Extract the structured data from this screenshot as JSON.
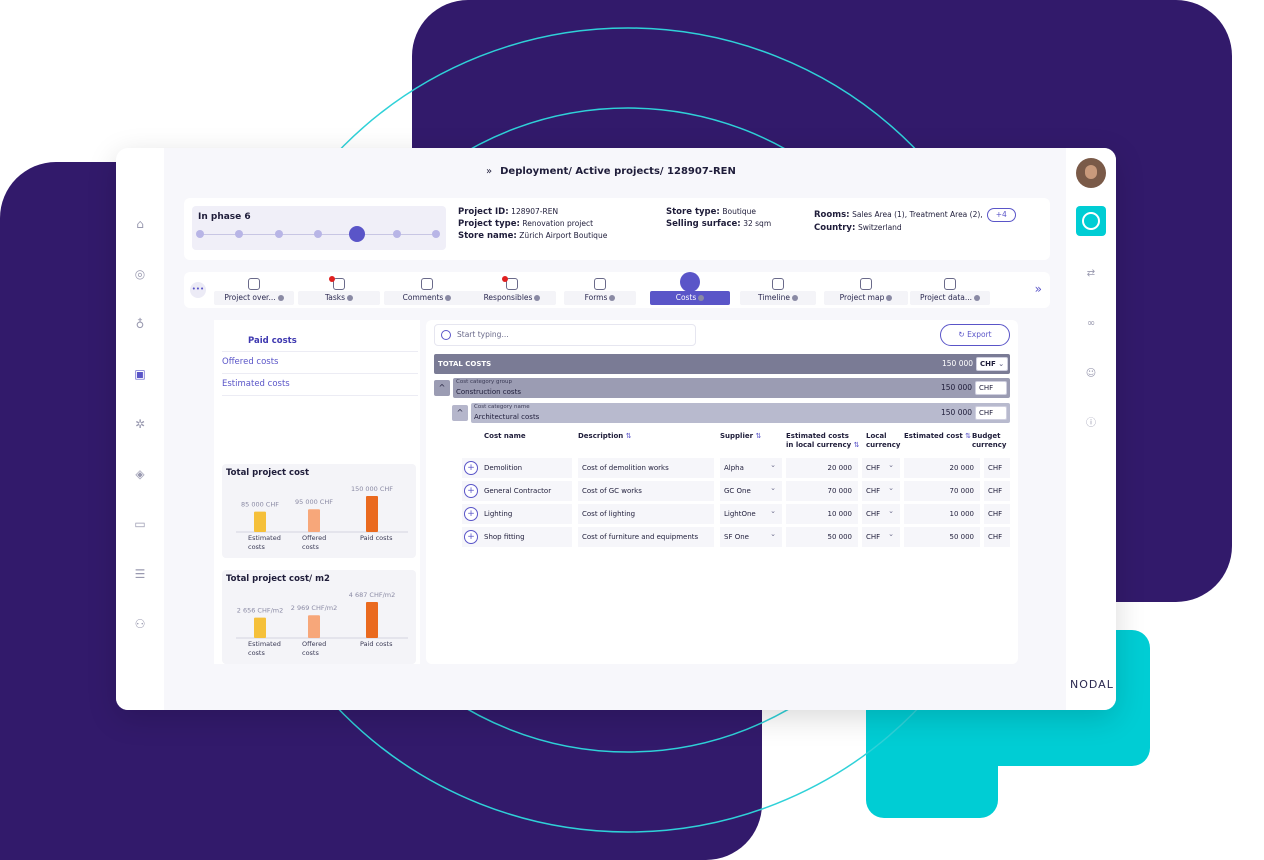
{
  "breadcrumb": "Deployment/ Active projects/ 128907-REN",
  "phase": {
    "title": "In phase 6",
    "current": 5,
    "total": 7
  },
  "project": {
    "id_label": "Project ID:",
    "id_value": "128907-REN",
    "type_label": "Project type:",
    "type_value": "Renovation project",
    "store_label": "Store name:",
    "store_value": "Zürich Airport Boutique",
    "store_type_label": "Store type:",
    "store_type_value": "Boutique",
    "surface_label": "Selling surface:",
    "surface_value": "32 sqm",
    "rooms_label": "Rooms:",
    "rooms_value": "Sales Area (1), Treatment Area (2),",
    "rooms_more": "+4",
    "country_label": "Country:",
    "country_value": "Switzerland"
  },
  "tabs": [
    {
      "label": "Project over...",
      "icon": "chart-icon",
      "active": false,
      "alert": false
    },
    {
      "label": "Tasks",
      "icon": "tasks-icon",
      "active": false,
      "alert": true
    },
    {
      "label": "Comments",
      "icon": "comments-icon",
      "active": false,
      "alert": false
    },
    {
      "label": "Responsibles",
      "icon": "people-icon",
      "active": false,
      "alert": true
    },
    {
      "label": "Forms",
      "icon": "forms-icon",
      "active": false,
      "alert": false
    },
    {
      "label": "Costs",
      "icon": "costs-icon",
      "active": true,
      "alert": false
    },
    {
      "label": "Timeline",
      "icon": "timeline-icon",
      "active": false,
      "alert": false
    },
    {
      "label": "Project map",
      "icon": "map-icon",
      "active": false,
      "alert": false
    },
    {
      "label": "Project data...",
      "icon": "database-icon",
      "active": false,
      "alert": false
    }
  ],
  "cost_nav": [
    "Paid costs",
    "Offered costs",
    "Estimated costs"
  ],
  "charts": [
    {
      "title": "Total project cost",
      "bars": [
        {
          "label1": "Estimated",
          "label2": "costs",
          "value_label": "85 000 CHF",
          "value": 85000,
          "color": "#f5c03a"
        },
        {
          "label1": "Offered",
          "label2": "costs",
          "value_label": "95 000 CHF",
          "value": 95000,
          "color": "#f7a77a"
        },
        {
          "label1": "Paid costs",
          "label2": "",
          "value_label": "150 000 CHF",
          "value": 150000,
          "color": "#ea6a1f"
        }
      ]
    },
    {
      "title": "Total project cost/ m2",
      "bars": [
        {
          "label1": "Estimated",
          "label2": "costs",
          "value_label": "2 656 CHF/m2",
          "value": 2656,
          "color": "#f5c03a"
        },
        {
          "label1": "Offered",
          "label2": "costs",
          "value_label": "2 969 CHF/m2",
          "value": 2969,
          "color": "#f7a77a"
        },
        {
          "label1": "Paid costs",
          "label2": "",
          "value_label": "4 687 CHF/m2",
          "value": 4687,
          "color": "#ea6a1f"
        }
      ]
    }
  ],
  "search": {
    "placeholder": "Start typing..."
  },
  "export_label": "Export",
  "total": {
    "label": "TOTAL COSTS",
    "amount": "150 000",
    "currency": "CHF"
  },
  "group": {
    "small": "Cost category group",
    "name": "Construction costs",
    "amount": "150 000",
    "currency": "CHF"
  },
  "category": {
    "small": "Cost category name",
    "name": "Architectural costs",
    "amount": "150 000",
    "currency": "CHF"
  },
  "columns": {
    "cost_name": "Cost name",
    "description": "Description",
    "supplier": "Supplier",
    "est_local_1": "Estimated costs",
    "est_local_2": "in local currency",
    "local_cur_1": "Local",
    "local_cur_2": "currency",
    "est_cost": "Estimated cost",
    "budget_1": "Budget",
    "budget_2": "currency"
  },
  "rows": [
    {
      "name": "Demolition",
      "description": "Cost of demolition works",
      "supplier": "Alpha",
      "est_local": "20 000",
      "local_cur": "CHF",
      "est_cost": "20 000",
      "budget_cur": "CHF"
    },
    {
      "name": "General Contractor",
      "description": "Cost of GC works",
      "supplier": "GC One",
      "est_local": "70 000",
      "local_cur": "CHF",
      "est_cost": "70 000",
      "budget_cur": "CHF"
    },
    {
      "name": "Lighting",
      "description": "Cost of lighting",
      "supplier": "LightOne",
      "est_local": "10 000",
      "local_cur": "CHF",
      "est_cost": "10 000",
      "budget_cur": "CHF"
    },
    {
      "name": "Shop fitting",
      "description": "Cost of furniture and equipments",
      "supplier": "SF One",
      "est_local": "50 000",
      "local_cur": "CHF",
      "est_cost": "50 000",
      "budget_cur": "CHF"
    }
  ],
  "brand": "NODAL",
  "colors": {
    "purple_bg": "#321a6b",
    "teal": "#00cdd4",
    "accent": "#5a55c8"
  }
}
